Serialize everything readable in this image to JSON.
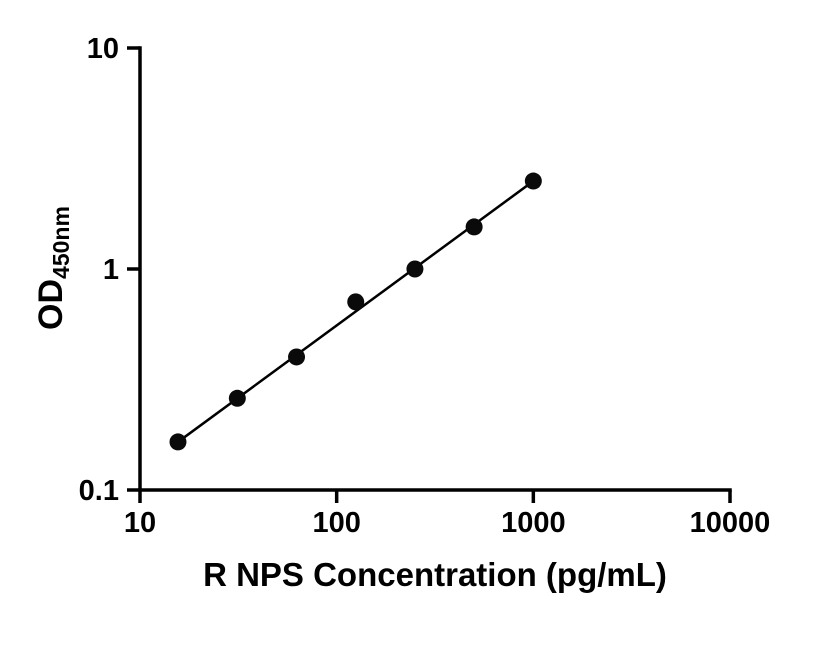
{
  "figure": {
    "background": "#ffffff",
    "axis_color": "#000000",
    "point_color": "#0a0a0a",
    "line_color": "#000000"
  },
  "chart_data": {
    "type": "scatter",
    "x_scale": "log",
    "y_scale": "log",
    "title": "",
    "xlabel": "R NPS Concentration (pg/mL)",
    "ylabel": "OD",
    "ylabel_subscript": "450nm",
    "x": [
      15.6,
      31.25,
      62.5,
      125,
      250,
      500,
      1000
    ],
    "y": [
      0.165,
      0.26,
      0.4,
      0.71,
      1.0,
      1.55,
      2.5
    ],
    "xlim": [
      10,
      10000
    ],
    "ylim": [
      0.1,
      10
    ],
    "x_ticks": [
      10,
      100,
      1000,
      10000
    ],
    "x_tick_labels": [
      "10",
      "100",
      "1000",
      "10000"
    ],
    "y_ticks": [
      0.1,
      1,
      10
    ],
    "y_tick_labels": [
      "0.1",
      "1",
      "10"
    ],
    "grid": false,
    "legend": "none",
    "marker": "filled-circle",
    "trendline": {
      "type": "linear-in-log-log",
      "from": [
        15.6,
        0.165
      ],
      "to": [
        1000,
        2.5
      ]
    }
  }
}
